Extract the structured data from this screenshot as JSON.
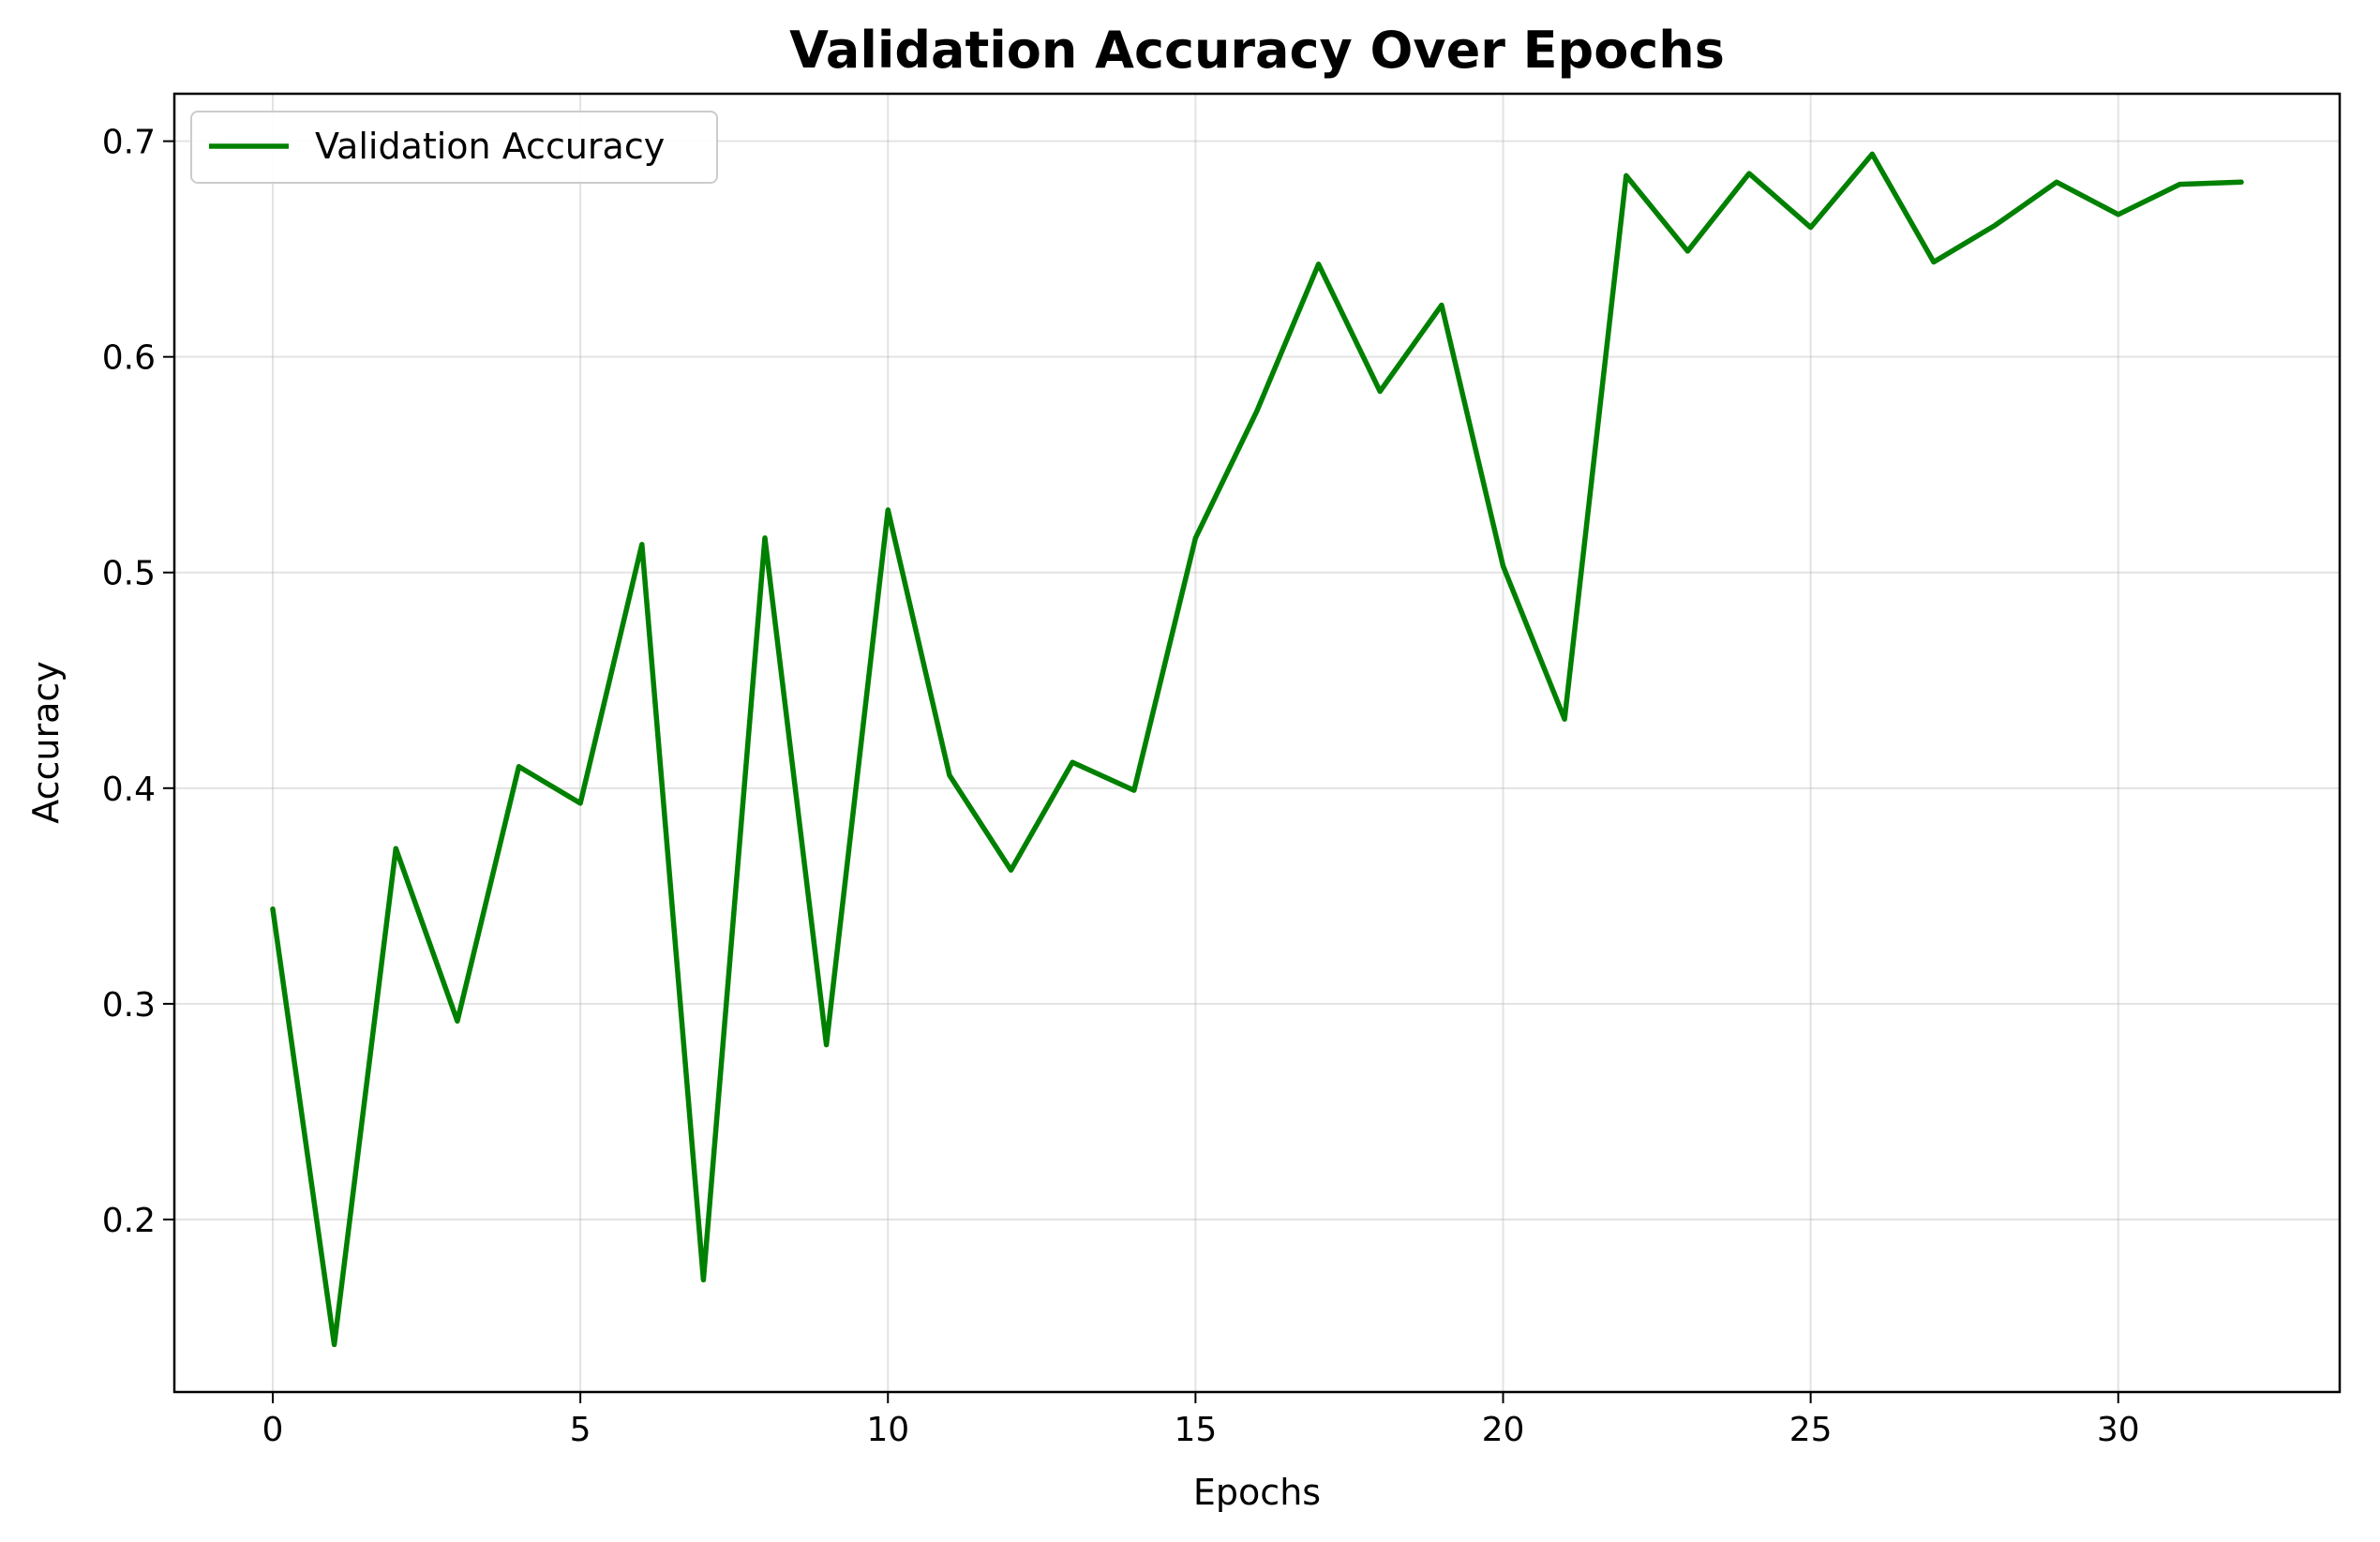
{
  "chart_data": {
    "type": "line",
    "title": "Validation Accuracy Over Epochs",
    "xlabel": "Epochs",
    "ylabel": "Accuracy",
    "xlim": [
      -1.6,
      33.6
    ],
    "ylim": [
      0.12,
      0.722
    ],
    "x_ticks": [
      0,
      5,
      10,
      15,
      20,
      25,
      30
    ],
    "y_ticks": [
      0.2,
      0.3,
      0.4,
      0.5,
      0.6,
      0.7
    ],
    "x_tick_labels": [
      "0",
      "5",
      "10",
      "15",
      "20",
      "25",
      "30"
    ],
    "y_tick_labels": [
      "0.2",
      "0.3",
      "0.4",
      "0.5",
      "0.6",
      "0.7"
    ],
    "grid": true,
    "legend_position": "top-left",
    "series": [
      {
        "name": "Validation Accuracy",
        "color": "#008000",
        "x": [
          0,
          1,
          2,
          3,
          4,
          5,
          6,
          7,
          8,
          9,
          10,
          11,
          12,
          13,
          14,
          15,
          16,
          17,
          18,
          19,
          20,
          21,
          22,
          23,
          24,
          25,
          26,
          27,
          28,
          29,
          30,
          31,
          32
        ],
        "values": [
          0.344,
          0.142,
          0.372,
          0.292,
          0.41,
          0.393,
          0.513,
          0.172,
          0.516,
          0.281,
          0.529,
          0.406,
          0.362,
          0.412,
          0.399,
          0.516,
          0.575,
          0.643,
          0.584,
          0.624,
          0.503,
          0.432,
          0.684,
          0.649,
          0.685,
          0.66,
          0.694,
          0.644,
          0.661,
          0.681,
          0.666,
          0.68,
          0.681
        ]
      }
    ]
  }
}
